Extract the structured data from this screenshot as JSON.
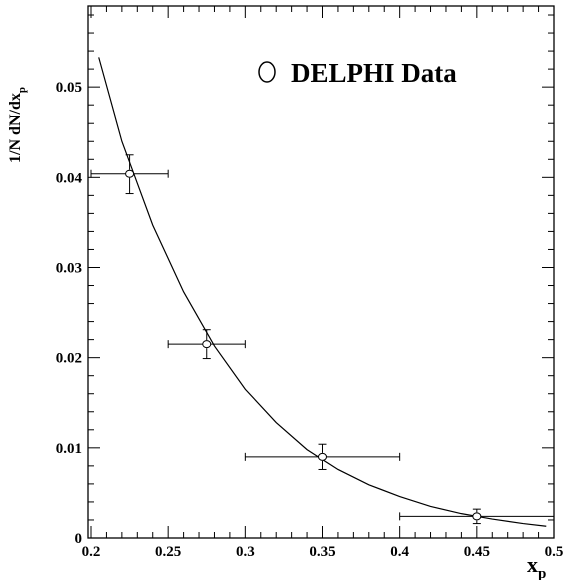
{
  "chart_data": {
    "type": "scatter",
    "xlabel": "x",
    "xlabel_sub": "p",
    "ylabel": "1/N dN/dx",
    "ylabel_sub": "p",
    "xlim": [
      0.2,
      0.5
    ],
    "ylim": [
      0,
      0.059
    ],
    "x_ticks": [
      0.2,
      0.25,
      0.3,
      0.35,
      0.4,
      0.45,
      0.5
    ],
    "x_tick_labels": [
      "0.2",
      "0.25",
      "0.3",
      "0.35",
      "0.4",
      "0.45",
      "0.5"
    ],
    "y_ticks": [
      0,
      0.01,
      0.02,
      0.03,
      0.04,
      0.05
    ],
    "y_tick_labels": [
      "0",
      "0.01",
      "0.02",
      "0.03",
      "0.04",
      "0.05"
    ],
    "grid": false,
    "legend_position": "top-right",
    "series": [
      {
        "name": "DELPHI Data",
        "marker": "open-circle",
        "points": [
          {
            "x": 0.225,
            "y": 0.0404,
            "xerr_low": 0.025,
            "xerr_high": 0.025,
            "yerr_low": 0.0022,
            "yerr_high": 0.0021
          },
          {
            "x": 0.275,
            "y": 0.0215,
            "xerr_low": 0.025,
            "xerr_high": 0.025,
            "yerr_low": 0.0016,
            "yerr_high": 0.0016
          },
          {
            "x": 0.35,
            "y": 0.009,
            "xerr_low": 0.05,
            "xerr_high": 0.05,
            "yerr_low": 0.0014,
            "yerr_high": 0.0014
          },
          {
            "x": 0.45,
            "y": 0.0024,
            "xerr_low": 0.05,
            "xerr_high": 0.05,
            "yerr_low": 0.0008,
            "yerr_high": 0.0008
          }
        ]
      }
    ],
    "fit_curve": {
      "x": [
        0.205,
        0.22,
        0.24,
        0.26,
        0.28,
        0.3,
        0.32,
        0.34,
        0.36,
        0.38,
        0.4,
        0.42,
        0.44,
        0.46,
        0.48,
        0.495
      ],
      "y": [
        0.0533,
        0.044,
        0.0347,
        0.0273,
        0.0213,
        0.0165,
        0.0128,
        0.0098,
        0.0076,
        0.0059,
        0.0046,
        0.0035,
        0.0027,
        0.0021,
        0.0016,
        0.0013
      ]
    }
  }
}
